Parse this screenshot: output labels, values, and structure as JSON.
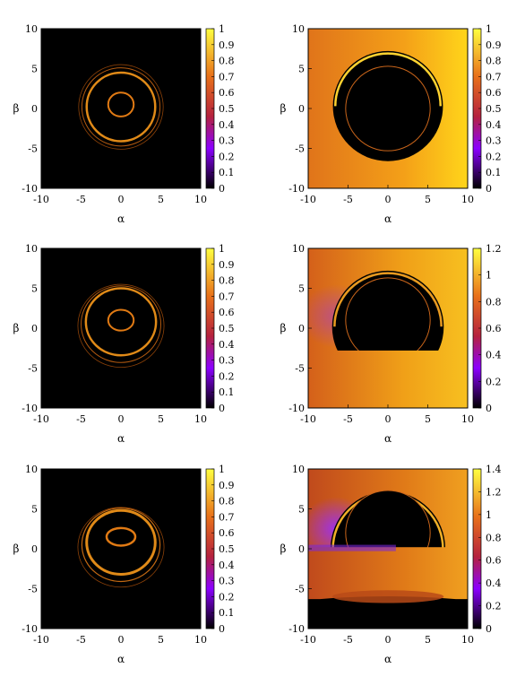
{
  "figure": {
    "rows": 3,
    "cols": 2
  },
  "chart_data": [
    {
      "type": "heatmap",
      "xlabel": "α",
      "ylabel": "β",
      "xlim": [
        -10,
        10
      ],
      "ylim": [
        -10,
        10
      ],
      "xticks": [
        -10,
        -5,
        0,
        5,
        10
      ],
      "yticks": [
        -10,
        -5,
        0,
        5,
        10
      ],
      "colorbar": {
        "range": [
          0,
          1
        ],
        "ticks": [
          "0",
          "0.1",
          "0.2",
          "0.3",
          "0.4",
          "0.5",
          "0.6",
          "0.7",
          "0.8",
          "0.9",
          "1"
        ]
      },
      "rings": [
        {
          "cx": 0,
          "cy": 0.5,
          "rx": 1.6,
          "ry": 1.5,
          "color": "#e07a14",
          "width": 2
        },
        {
          "cx": 0,
          "cy": 0.2,
          "rx": 4.3,
          "ry": 4.3,
          "color": "#e08a18",
          "width": 2.5
        },
        {
          "cx": 0,
          "cy": 0.2,
          "rx": 4.9,
          "ry": 4.9,
          "color": "#b35a10",
          "width": 1
        },
        {
          "cx": 0,
          "cy": 0.2,
          "rx": 5.3,
          "ry": 5.3,
          "color": "#8a4008",
          "width": 0.8
        }
      ]
    },
    {
      "type": "heatmap",
      "xlabel": "α",
      "ylabel": "β",
      "xlim": [
        -10,
        10
      ],
      "ylim": [
        -10,
        10
      ],
      "xticks": [
        -10,
        -5,
        0,
        5,
        10
      ],
      "yticks": [
        -10,
        -5,
        0,
        5,
        10
      ],
      "colorbar": {
        "range": [
          0,
          1
        ],
        "ticks": [
          "0",
          "0.1",
          "0.2",
          "0.3",
          "0.4",
          "0.5",
          "0.6",
          "0.7",
          "0.8",
          "0.9",
          "1"
        ]
      },
      "background": {
        "left": "#e0741a",
        "right": "#f4a018",
        "edge": "#ffd51a",
        "purple": 0.0
      },
      "shadow": {
        "arc_top": 7.2,
        "arc_rx": 6.9,
        "disk_r": 5.3,
        "disk_cy": 0
      },
      "bright_arc": "#ffd330"
    },
    {
      "type": "heatmap",
      "xlabel": "α",
      "ylabel": "β",
      "xlim": [
        -10,
        10
      ],
      "ylim": [
        -10,
        10
      ],
      "xticks": [
        -10,
        -5,
        0,
        5,
        10
      ],
      "yticks": [
        -10,
        -5,
        0,
        5,
        10
      ],
      "colorbar": {
        "range": [
          0,
          1
        ],
        "ticks": [
          "0",
          "0.1",
          "0.2",
          "0.3",
          "0.4",
          "0.5",
          "0.6",
          "0.7",
          "0.8",
          "0.9",
          "1"
        ]
      },
      "rings": [
        {
          "cx": 0,
          "cy": 1.0,
          "rx": 1.6,
          "ry": 1.3,
          "color": "#e07a14",
          "width": 2
        },
        {
          "cx": 0,
          "cy": 0.8,
          "rx": 4.4,
          "ry": 4.2,
          "color": "#e08a18",
          "width": 2.5
        },
        {
          "cx": 0,
          "cy": 0.5,
          "rx": 5.0,
          "ry": 4.8,
          "color": "#b35a10",
          "width": 1
        },
        {
          "cx": 0,
          "cy": 0.3,
          "rx": 5.4,
          "ry": 5.2,
          "color": "#8a4008",
          "width": 0.8
        }
      ]
    },
    {
      "type": "heatmap",
      "xlabel": "α",
      "ylabel": "β",
      "xlim": [
        -10,
        10
      ],
      "ylim": [
        -10,
        10
      ],
      "xticks": [
        -10,
        -5,
        0,
        5,
        10
      ],
      "yticks": [
        -10,
        -5,
        0,
        5,
        10
      ],
      "colorbar": {
        "range": [
          0,
          1.2
        ],
        "ticks": [
          "0",
          "0.2",
          "0.4",
          "0.6",
          "0.8",
          "1",
          "1.2"
        ]
      },
      "background": {
        "left": "#d4601a",
        "right": "#f0a018",
        "edge": "#f7c020",
        "purple": 0.5
      },
      "shadow": {
        "arc_top": 7.2,
        "arc_rx": 7.0,
        "disk_r": 5.3,
        "disk_cy": 1.0,
        "lower_cut": -2.8
      },
      "bright_arc": "#e89a20"
    },
    {
      "type": "heatmap",
      "xlabel": "α",
      "ylabel": "β",
      "xlim": [
        -10,
        10
      ],
      "ylim": [
        -10,
        10
      ],
      "xticks": [
        -10,
        -5,
        0,
        5,
        10
      ],
      "yticks": [
        -10,
        -5,
        0,
        5,
        10
      ],
      "colorbar": {
        "range": [
          0,
          1
        ],
        "ticks": [
          "0",
          "0.1",
          "0.2",
          "0.3",
          "0.4",
          "0.5",
          "0.6",
          "0.7",
          "0.8",
          "0.9",
          "1"
        ]
      },
      "rings": [
        {
          "cx": 0,
          "cy": 1.5,
          "rx": 1.8,
          "ry": 1.1,
          "color": "#e07a14",
          "width": 2.5
        },
        {
          "cx": 0,
          "cy": 0.8,
          "rx": 4.3,
          "ry": 4.0,
          "color": "#e08a18",
          "width": 3
        },
        {
          "cx": 0,
          "cy": 0.5,
          "rx": 4.9,
          "ry": 4.6,
          "color": "#c26812",
          "width": 1.2
        },
        {
          "cx": 0,
          "cy": 0.2,
          "rx": 5.4,
          "ry": 5.0,
          "color": "#8a4008",
          "width": 0.8
        }
      ]
    },
    {
      "type": "heatmap",
      "xlabel": "α",
      "ylabel": "β",
      "xlim": [
        -10,
        10
      ],
      "ylim": [
        -10,
        10
      ],
      "xticks": [
        -10,
        -5,
        0,
        5,
        10
      ],
      "yticks": [
        -10,
        -5,
        0,
        5,
        10
      ],
      "colorbar": {
        "range": [
          0,
          1.4
        ],
        "ticks": [
          "0",
          "0.2",
          "0.4",
          "0.6",
          "0.8",
          "1",
          "1.2",
          "1.4"
        ]
      },
      "background": {
        "left": "#c04a1c",
        "right": "#e07a18",
        "edge": "#f0a020",
        "purple": 1.0
      },
      "shadow": {
        "arc_top": 7.2,
        "arc_rx": 7.2,
        "disk_r": 5.3,
        "disk_cy": 2.0,
        "lower_cut": 0.2
      },
      "bright_arc": "#f0b028",
      "bottom_shadow": true
    }
  ]
}
